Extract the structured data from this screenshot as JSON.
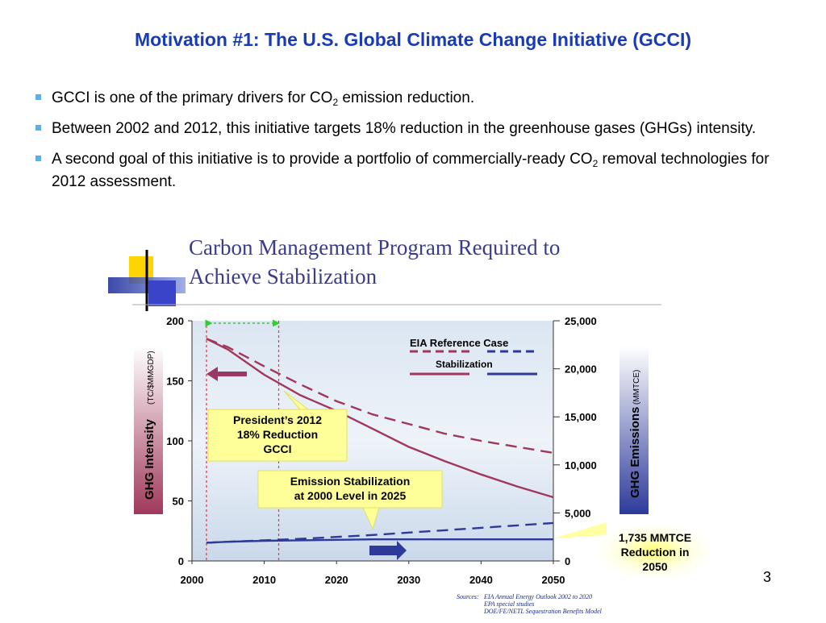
{
  "slide": {
    "title": "Motivation #1: The U.S. Global Climate Change Initiative (GCCI)",
    "bullets": [
      {
        "pre": "GCCI is one of the primary drivers for CO",
        "sub": "2",
        "post": " emission reduction."
      },
      {
        "pre": "Between 2002 and 2012, this initiative targets 18% reduction in the greenhouse gases (GHGs) intensity.",
        "sub": "",
        "post": ""
      },
      {
        "pre": "A second goal of this initiative is to provide a portfolio of commercially-ready CO",
        "sub": "2",
        "post": " removal technologies for 2012 assessment."
      }
    ],
    "page_number": "3"
  },
  "figure": {
    "heading_line1": "Carbon Management Program Required to",
    "heading_line2": "Achieve Stabilization",
    "annotations": {
      "presidents_goal": [
        "President’s 2012",
        "18% Reduction",
        "GCCI"
      ],
      "stabilization": [
        "Emission Stabilization",
        "at 2000 Level in 2025"
      ],
      "reduction_2050": [
        "1,735 MMTCE",
        "Reduction in",
        "2050"
      ]
    },
    "sources": {
      "label": "Sources:",
      "lines": [
        "EIA Annual Energy Outlook 2002 to 2020",
        "EPA special studies",
        "DOE/FE/NETL Sequestration Benefits Model"
      ]
    }
  },
  "chart_data": {
    "type": "line",
    "title": "Carbon Management Program Required to Achieve Stabilization",
    "x": [
      2002,
      2005,
      2010,
      2015,
      2020,
      2025,
      2030,
      2035,
      2040,
      2045,
      2050
    ],
    "xlim": [
      2000,
      2050
    ],
    "x_ticks": [
      "2000",
      "2010",
      "2020",
      "2030",
      "2040",
      "2050"
    ],
    "ylabel_left": "GHG Intensity",
    "ylabel_left_units": "(TC/$MMGDP)",
    "ylim_left": [
      0,
      200
    ],
    "y_ticks_left": [
      "0",
      "50",
      "100",
      "150",
      "200"
    ],
    "ylabel_right": "GHG Emissions",
    "ylabel_right_units": "(MMTCE)",
    "ylim_right": [
      0,
      25000
    ],
    "y_ticks_right": [
      "0",
      "5,000",
      "10,000",
      "15,000",
      "20,000",
      "25,000"
    ],
    "legend": {
      "title": "EIA Reference Case",
      "second": "Stabilization",
      "position": "top-right"
    },
    "series": [
      {
        "name": "EIA Reference Case",
        "axis": "left",
        "style": "dashed",
        "color": "#a0385c",
        "values": [
          185,
          178,
          162,
          147,
          133,
          122,
          114,
          106,
          100,
          95,
          90
        ]
      },
      {
        "name": "Stabilization",
        "axis": "left",
        "style": "solid",
        "color": "#a0385c",
        "values": [
          185,
          176,
          155,
          138,
          125,
          110,
          95,
          83,
          72,
          62,
          53
        ]
      },
      {
        "name": "EIA Reference Case",
        "axis": "right",
        "style": "dashed",
        "color": "#2d3a9a",
        "values": [
          1900,
          2000,
          2150,
          2300,
          2500,
          2700,
          2950,
          3200,
          3450,
          3700,
          3950
        ]
      },
      {
        "name": "Stabilization",
        "axis": "right",
        "style": "solid",
        "color": "#2d3a9a",
        "values": [
          1900,
          2000,
          2100,
          2150,
          2200,
          2250,
          2250,
          2250,
          2250,
          2250,
          2250
        ]
      }
    ],
    "markers": {
      "gcci_start": 2002,
      "gcci_end": 2012
    },
    "colors": {
      "title_blue": "#1a3bb8",
      "bullet": "#5ab0e8",
      "intensity": "#a0385c",
      "emissions": "#2d3a9a",
      "highlight": "#ffff99"
    }
  }
}
